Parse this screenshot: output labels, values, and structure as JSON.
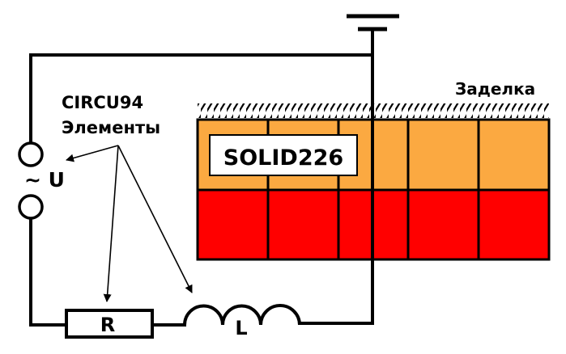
{
  "labels": {
    "circu_line1": "CIRCU94",
    "circu_line2": "Элементы",
    "voltage": "~ U",
    "clamp": "Заделка",
    "solid": "SOLID226",
    "resistor": "R",
    "inductor": "L"
  },
  "colors": {
    "solid_upper": "#FBA941",
    "solid_lower": "#FF0000",
    "wire": "#000000",
    "label_box": "#FFFFFF"
  },
  "icons": [
    "ground-icon",
    "ac-source-icon",
    "resistor-icon",
    "inductor-icon",
    "hatch-pattern"
  ]
}
